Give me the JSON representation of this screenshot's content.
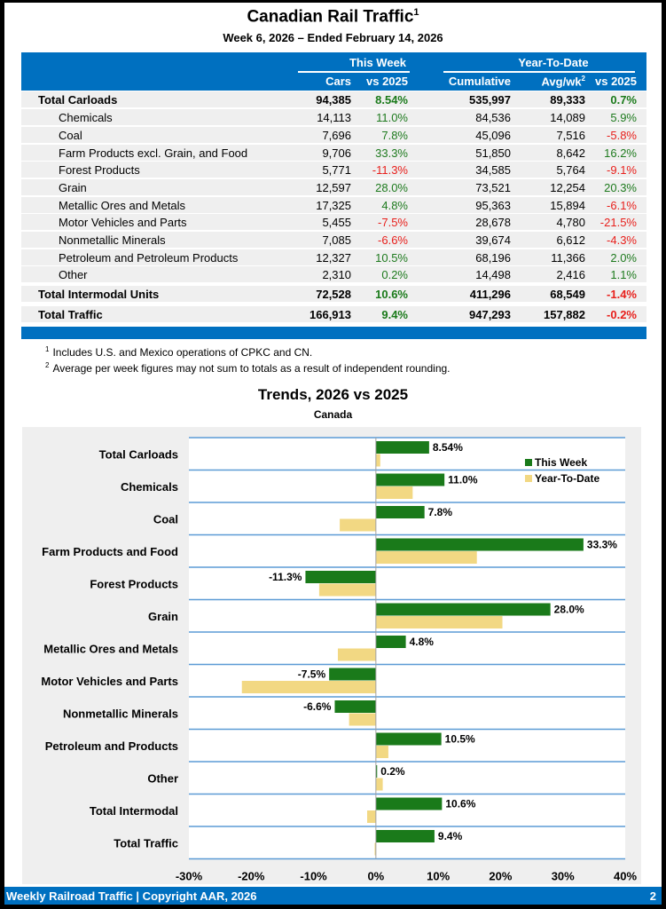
{
  "header": {
    "title": "Canadian Rail Traffic",
    "title_sup": "1",
    "subtitle": "Week 6, 2026 – Ended February 14, 2026"
  },
  "table": {
    "group_headers": {
      "this_week": "This Week",
      "ytd": "Year-To-Date"
    },
    "columns": {
      "cars": "Cars",
      "vs2025_week": "vs 2025",
      "cumulative": "Cumulative",
      "avgwk": "Avg/wk",
      "avgwk_sup": "2",
      "vs2025_ytd": "vs 2025"
    },
    "rows": [
      {
        "label": "Total Carloads",
        "type": "total",
        "cars": "94,385",
        "week_pct": "8.54%",
        "cumulative": "535,997",
        "avgwk": "89,333",
        "ytd_pct": "0.7%"
      },
      {
        "label": "Chemicals",
        "type": "sub",
        "cars": "14,113",
        "week_pct": "11.0%",
        "cumulative": "84,536",
        "avgwk": "14,089",
        "ytd_pct": "5.9%"
      },
      {
        "label": "Coal",
        "type": "sub",
        "cars": "7,696",
        "week_pct": "7.8%",
        "cumulative": "45,096",
        "avgwk": "7,516",
        "ytd_pct": "-5.8%"
      },
      {
        "label": "Farm Products excl. Grain, and Food",
        "type": "sub",
        "cars": "9,706",
        "week_pct": "33.3%",
        "cumulative": "51,850",
        "avgwk": "8,642",
        "ytd_pct": "16.2%"
      },
      {
        "label": "Forest Products",
        "type": "sub",
        "cars": "5,771",
        "week_pct": "-11.3%",
        "cumulative": "34,585",
        "avgwk": "5,764",
        "ytd_pct": "-9.1%"
      },
      {
        "label": "Grain",
        "type": "sub",
        "cars": "12,597",
        "week_pct": "28.0%",
        "cumulative": "73,521",
        "avgwk": "12,254",
        "ytd_pct": "20.3%"
      },
      {
        "label": "Metallic Ores and Metals",
        "type": "sub",
        "cars": "17,325",
        "week_pct": "4.8%",
        "cumulative": "95,363",
        "avgwk": "15,894",
        "ytd_pct": "-6.1%"
      },
      {
        "label": "Motor Vehicles and Parts",
        "type": "sub",
        "cars": "5,455",
        "week_pct": "-7.5%",
        "cumulative": "28,678",
        "avgwk": "4,780",
        "ytd_pct": "-21.5%"
      },
      {
        "label": "Nonmetallic Minerals",
        "type": "sub",
        "cars": "7,085",
        "week_pct": "-6.6%",
        "cumulative": "39,674",
        "avgwk": "6,612",
        "ytd_pct": "-4.3%"
      },
      {
        "label": "Petroleum and Petroleum Products",
        "type": "sub",
        "cars": "12,327",
        "week_pct": "10.5%",
        "cumulative": "68,196",
        "avgwk": "11,366",
        "ytd_pct": "2.0%"
      },
      {
        "label": "Other",
        "type": "sub",
        "cars": "2,310",
        "week_pct": "0.2%",
        "cumulative": "14,498",
        "avgwk": "2,416",
        "ytd_pct": "1.1%"
      },
      {
        "label": "Total Intermodal Units",
        "type": "total",
        "cars": "72,528",
        "week_pct": "10.6%",
        "cumulative": "411,296",
        "avgwk": "68,549",
        "ytd_pct": "-1.4%"
      },
      {
        "label": "Total Traffic",
        "type": "total",
        "cars": "166,913",
        "week_pct": "9.4%",
        "cumulative": "947,293",
        "avgwk": "157,882",
        "ytd_pct": "-0.2%"
      }
    ]
  },
  "notes": [
    {
      "sup": "1",
      "text": "Includes U.S. and Mexico operations of CPKC and CN."
    },
    {
      "sup": "2",
      "text": "Average per week figures may not sum to totals as a result of independent rounding."
    }
  ],
  "colors": {
    "brand_blue": "#0070c0",
    "this_week": "#1a7a1a",
    "ytd": "#f2d883",
    "positive": "#1e7a1e",
    "negative": "#e8201c",
    "gridline": "#5b9bd5"
  },
  "chart_data": {
    "type": "bar",
    "orientation": "horizontal",
    "title": "Trends, 2026 vs 2025",
    "subtitle": "Canada",
    "xlabel": "",
    "ylabel": "",
    "xlim": [
      -30,
      40
    ],
    "xticks": [
      -30,
      -20,
      -10,
      0,
      10,
      20,
      30,
      40
    ],
    "xtick_labels": [
      "-30%",
      "-20%",
      "-10%",
      "0%",
      "10%",
      "20%",
      "30%",
      "40%"
    ],
    "legend_position": "top-right",
    "grid": "horizontal category separators",
    "categories": [
      "Total Carloads",
      "Chemicals",
      "Coal",
      "Farm Products and Food",
      "Forest Products",
      "Grain",
      "Metallic Ores and Metals",
      "Motor Vehicles and Parts",
      "Nonmetallic Minerals",
      "Petroleum and Products",
      "Other",
      "Total Intermodal",
      "Total Traffic"
    ],
    "series": [
      {
        "name": "This Week",
        "values": [
          8.54,
          11.0,
          7.8,
          33.3,
          -11.3,
          28.0,
          4.8,
          -7.5,
          -6.6,
          10.5,
          0.2,
          10.6,
          9.4
        ],
        "labels": [
          "8.54%",
          "11.0%",
          "7.8%",
          "33.3%",
          "-11.3%",
          "28.0%",
          "4.8%",
          "-7.5%",
          "-6.6%",
          "10.5%",
          "0.2%",
          "10.6%",
          "9.4%"
        ]
      },
      {
        "name": "Year-To-Date",
        "values": [
          0.7,
          5.9,
          -5.8,
          16.2,
          -9.1,
          20.3,
          -6.1,
          -21.5,
          -4.3,
          2.0,
          1.1,
          -1.4,
          -0.2
        ]
      }
    ]
  },
  "footer": {
    "left": "Weekly Railroad Traffic | Copyright AAR, 2026",
    "page": "2"
  }
}
